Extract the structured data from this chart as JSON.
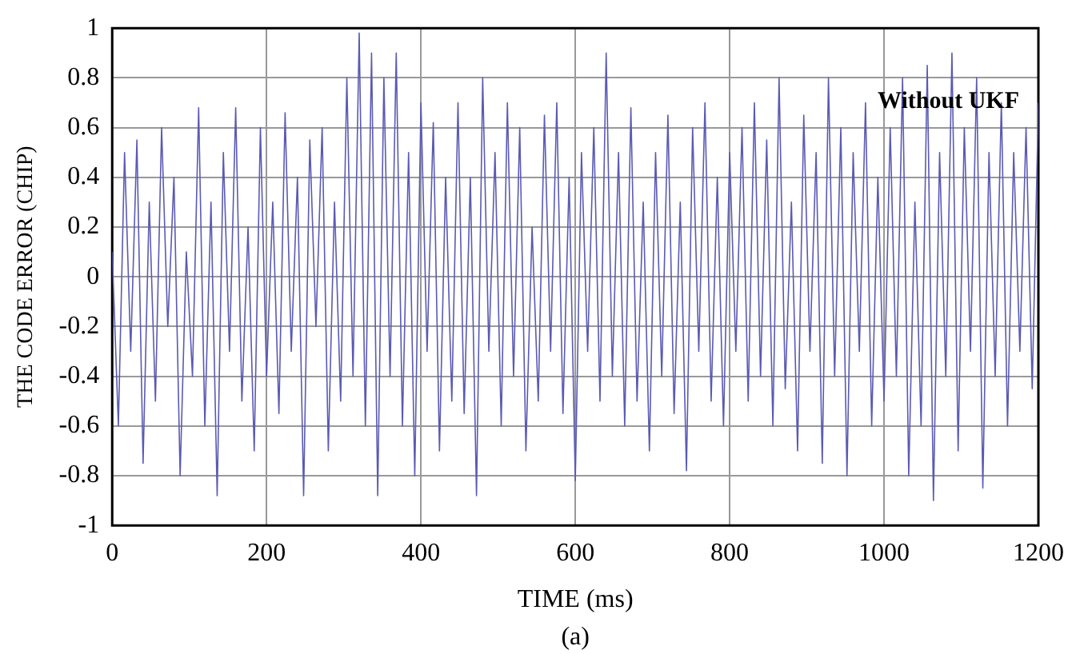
{
  "chart_data": {
    "type": "line",
    "xlabel": "TIME (ms)",
    "ylabel": "THE CODE ERROR (CHIP)",
    "annotations": [
      "Without UKF",
      "(a)"
    ],
    "x": [
      0,
      8,
      16,
      24,
      32,
      40,
      48,
      56,
      64,
      72,
      80,
      88,
      96,
      104,
      112,
      120,
      128,
      136,
      144,
      152,
      160,
      168,
      176,
      184,
      192,
      200,
      208,
      216,
      224,
      232,
      240,
      248,
      256,
      264,
      272,
      280,
      288,
      296,
      304,
      312,
      320,
      328,
      336,
      344,
      352,
      360,
      368,
      376,
      384,
      392,
      400,
      408,
      416,
      424,
      432,
      440,
      448,
      456,
      464,
      472,
      480,
      488,
      496,
      504,
      512,
      520,
      528,
      536,
      544,
      552,
      560,
      568,
      576,
      584,
      592,
      600,
      608,
      616,
      624,
      632,
      640,
      648,
      656,
      664,
      672,
      680,
      688,
      696,
      704,
      712,
      720,
      728,
      736,
      744,
      752,
      760,
      768,
      776,
      784,
      792,
      800,
      808,
      816,
      824,
      832,
      840,
      848,
      856,
      864,
      872,
      880,
      888,
      896,
      904,
      912,
      920,
      928,
      936,
      944,
      952,
      960,
      968,
      976,
      984,
      992,
      1000,
      1008,
      1016,
      1024,
      1032,
      1040,
      1048,
      1056,
      1064,
      1072,
      1080,
      1088,
      1096,
      1104,
      1112,
      1120,
      1128,
      1136,
      1144,
      1152,
      1160,
      1168,
      1176,
      1184,
      1192,
      1200
    ],
    "series": [
      {
        "color": "#5a5ab4",
        "values": [
          0.1,
          -0.6,
          0.5,
          -0.3,
          0.55,
          -0.75,
          0.3,
          -0.5,
          0.6,
          -0.2,
          0.4,
          -0.8,
          0.1,
          -0.4,
          0.68,
          -0.6,
          0.3,
          -0.88,
          0.5,
          -0.3,
          0.68,
          -0.5,
          0.2,
          -0.7,
          0.6,
          -0.4,
          0.3,
          -0.55,
          0.66,
          -0.3,
          0.4,
          -0.88,
          0.55,
          -0.2,
          0.6,
          -0.7,
          0.3,
          -0.5,
          0.8,
          -0.4,
          0.98,
          -0.6,
          0.9,
          -0.88,
          0.8,
          -0.4,
          0.9,
          -0.6,
          0.5,
          -0.8,
          0.7,
          -0.3,
          0.62,
          -0.7,
          0.4,
          -0.5,
          0.7,
          -0.55,
          0.4,
          -0.88,
          0.8,
          -0.3,
          0.5,
          -0.6,
          0.7,
          -0.4,
          0.6,
          -0.7,
          0.2,
          -0.5,
          0.65,
          -0.3,
          0.7,
          -0.55,
          0.4,
          -0.82,
          0.5,
          -0.3,
          0.6,
          -0.5,
          0.9,
          -0.4,
          0.5,
          -0.6,
          0.68,
          -0.5,
          0.3,
          -0.7,
          0.5,
          -0.4,
          0.65,
          -0.55,
          0.3,
          -0.78,
          0.6,
          -0.3,
          0.7,
          -0.5,
          0.4,
          -0.6,
          0.5,
          -0.3,
          0.6,
          -0.5,
          0.7,
          -0.4,
          0.55,
          -0.6,
          0.8,
          -0.45,
          0.3,
          -0.7,
          0.65,
          -0.3,
          0.5,
          -0.75,
          0.8,
          -0.4,
          0.6,
          -0.8,
          0.5,
          -0.3,
          0.7,
          -0.6,
          0.4,
          -0.5,
          0.6,
          -0.4,
          0.8,
          -0.8,
          0.3,
          -0.6,
          0.85,
          -0.9,
          0.5,
          -0.4,
          0.9,
          -0.7,
          0.6,
          -0.3,
          0.8,
          -0.85,
          0.5,
          -0.4,
          0.7,
          -0.6,
          0.5,
          -0.3,
          0.6,
          -0.45,
          0.7
        ]
      }
    ],
    "xlim": [
      0,
      1200
    ],
    "xticks": [
      0,
      200,
      400,
      600,
      800,
      1000,
      1200
    ],
    "ylim": [
      -1,
      1
    ],
    "yticks": [
      -1,
      -0.8,
      -0.6,
      -0.4,
      -0.2,
      0,
      0.2,
      0.4,
      0.6,
      0.8,
      1
    ],
    "grid": true,
    "legend": false,
    "marker": "none",
    "line_style": "solid"
  }
}
